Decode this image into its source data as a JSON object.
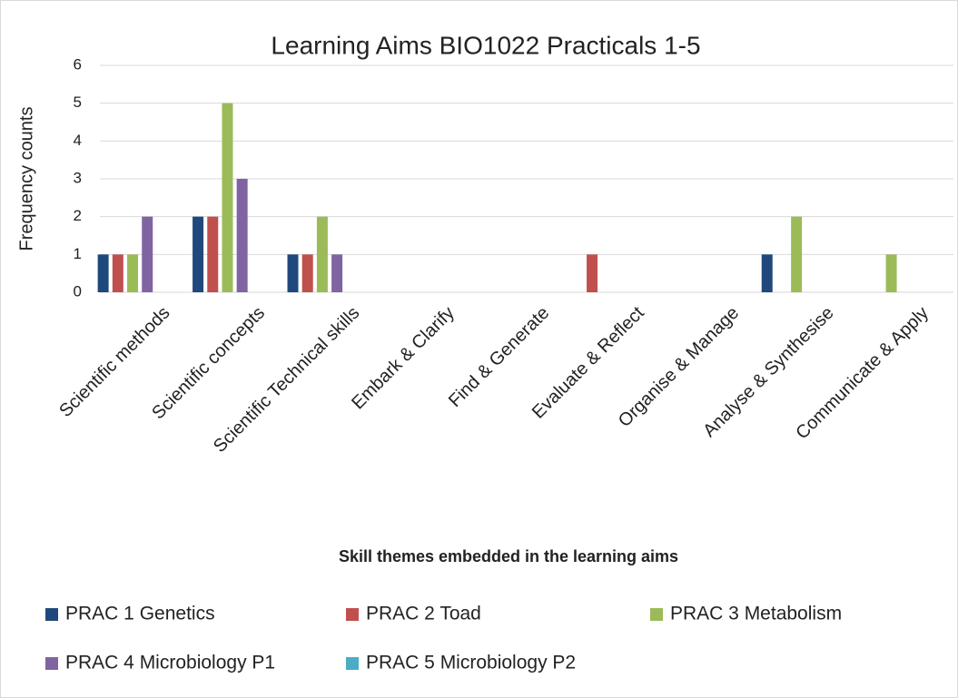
{
  "chart_data": {
    "type": "bar",
    "title": "Learning Aims BIO1022 Practicals 1-5",
    "x_label": "Skill  themes embedded in the learning  aims",
    "y_label": "Frequency counts",
    "categories": [
      "Scientific methods",
      "Scientific concepts",
      "Scientific Technical skills",
      "Embark & Clarify",
      "Find & Generate",
      "Evaluate & Reflect",
      "Organise & Manage",
      "Analyse & Synthesise",
      "Communicate & Apply"
    ],
    "series": [
      {
        "name": "PRAC 1 Genetics",
        "color": "#1f497d",
        "values": [
          1,
          2,
          1,
          0,
          0,
          0,
          0,
          1,
          0
        ]
      },
      {
        "name": "PRAC 2 Toad",
        "color": "#c0504d",
        "values": [
          1,
          2,
          1,
          0,
          0,
          1,
          0,
          0,
          0
        ]
      },
      {
        "name": "PRAC 3 Metabolism",
        "color": "#9bbb59",
        "values": [
          1,
          5,
          2,
          0,
          0,
          0,
          0,
          2,
          1
        ]
      },
      {
        "name": "PRAC 4 Microbiology P1",
        "color": "#8064a2",
        "values": [
          2,
          3,
          1,
          0,
          0,
          0,
          0,
          0,
          0
        ]
      },
      {
        "name": "PRAC 5 Microbiology P2",
        "color": "#4bacc6",
        "values": [
          0,
          0,
          0,
          0,
          0,
          0,
          0,
          0,
          0
        ]
      }
    ],
    "ylim": [
      0,
      6
    ],
    "yticks": [
      0,
      1,
      2,
      3,
      4,
      5,
      6
    ],
    "grid": true,
    "legend": "bottom"
  }
}
